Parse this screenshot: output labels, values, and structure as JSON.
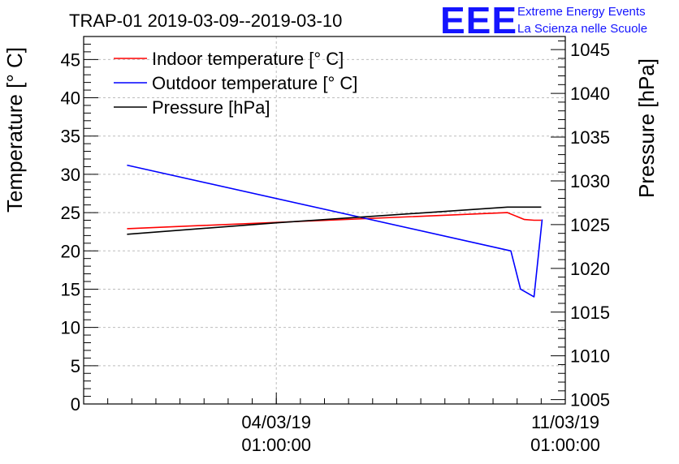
{
  "chart_data": {
    "type": "line",
    "title": "TRAP-01 2019-03-09--2019-03-10",
    "ylabel_left": "Temperature [° C]",
    "ylabel_right": "Pressure [hPa]",
    "ylim_left": [
      0,
      48
    ],
    "ylim_right": [
      1004.5,
      1046.5
    ],
    "yticks_left": [
      0,
      5,
      10,
      15,
      20,
      25,
      30,
      35,
      40,
      45
    ],
    "yticks_right": [
      1005,
      1010,
      1015,
      1020,
      1025,
      1030,
      1035,
      1040,
      1045
    ],
    "xlim": [
      0,
      1
    ],
    "xticks": [
      {
        "x": 0.4,
        "date": "04/03/19",
        "time": "01:00:00"
      },
      {
        "x": 1.0,
        "date": "11/03/19",
        "time": "01:00:00"
      }
    ],
    "grid": true,
    "legend_position": "top-left",
    "series": [
      {
        "name": "Indoor temperature [° C]",
        "color": "#ff0000",
        "axis": "left",
        "x": [
          0.09,
          0.88,
          0.915,
          0.935,
          0.95
        ],
        "y": [
          22.9,
          25.0,
          24.1,
          24.0,
          24.0
        ]
      },
      {
        "name": "Outdoor temperature [° C]",
        "color": "#0000ff",
        "axis": "left",
        "x": [
          0.09,
          0.887,
          0.907,
          0.935,
          0.952
        ],
        "y": [
          31.2,
          20.0,
          15.0,
          14.0,
          24.1
        ]
      },
      {
        "name": "Pressure [hPa]",
        "color": "#000000",
        "axis": "right",
        "x": [
          0.09,
          0.4,
          0.88,
          0.95
        ],
        "y": [
          1023.9,
          1025.2,
          1027.0,
          1027.0
        ]
      }
    ]
  },
  "logo": {
    "mark": "EEE",
    "line1": "Extreme Energy Events",
    "line2": "La Scienza nelle Scuole"
  }
}
